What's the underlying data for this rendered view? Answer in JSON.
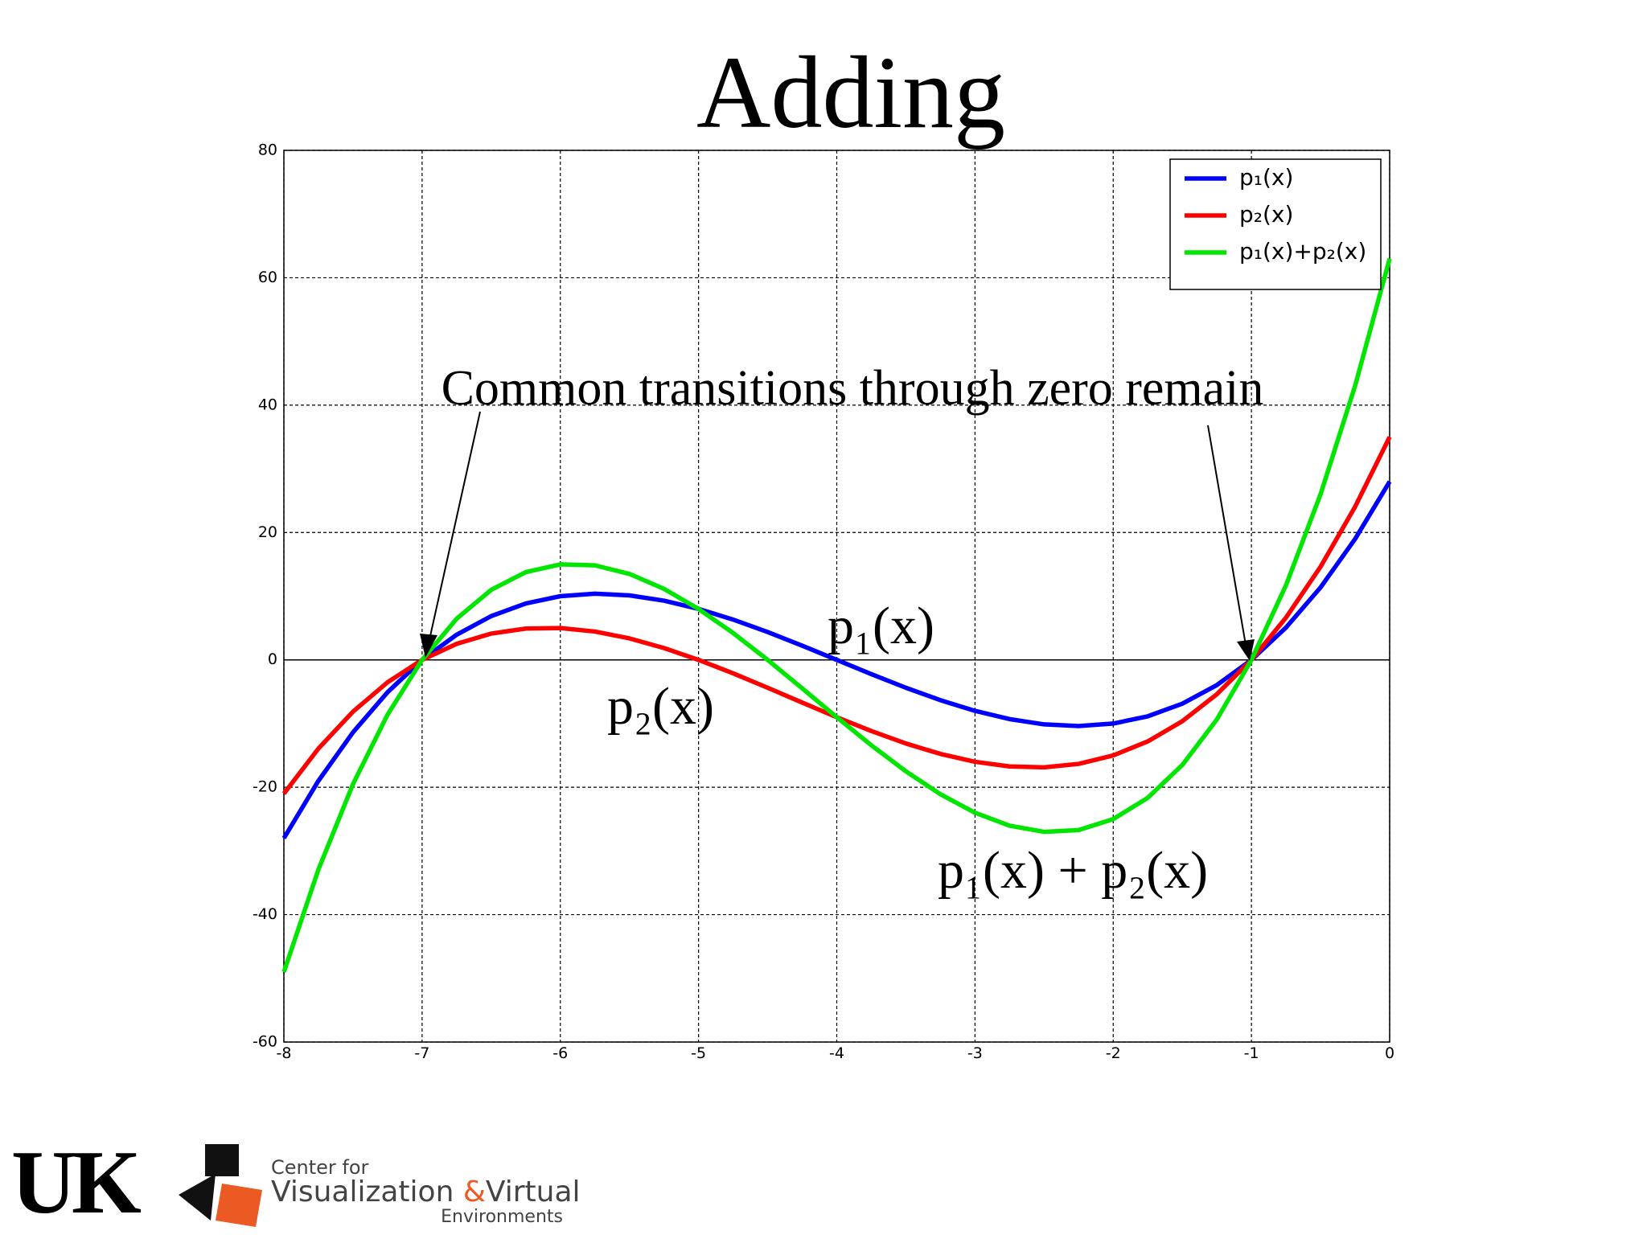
{
  "chart_data": {
    "type": "line",
    "title": "Adding",
    "x": [
      -8,
      -7.75,
      -7.5,
      -7.25,
      -7,
      -6.75,
      -6.5,
      -6.25,
      -6,
      -5.75,
      -5.5,
      -5.25,
      -5,
      -4.75,
      -4.5,
      -4.25,
      -4,
      -3.75,
      -3.5,
      -3.25,
      -3,
      -2.75,
      -2.5,
      -2.25,
      -2,
      -1.75,
      -1.5,
      -1.25,
      -1,
      -0.75,
      -0.5,
      -0.25,
      0
    ],
    "series": [
      {
        "name": "p₁(x)",
        "color": "#0000ff",
        "values": [
          -28,
          -18.984375,
          -11.375,
          -5.078125,
          0,
          3.953125,
          6.875,
          8.859375,
          10,
          10.390625,
          10.125,
          9.296875,
          8,
          6.328125,
          4.375,
          2.234375,
          0,
          -2.234375,
          -4.375,
          -6.328125,
          -8,
          -9.296875,
          -10.125,
          -10.390625,
          -10,
          -8.859375,
          -6.875,
          -3.953125,
          0,
          5.078125,
          11.375,
          18.984375,
          28
        ]
      },
      {
        "name": "p₂(x)",
        "color": "#ff0000",
        "values": [
          -21,
          -13.921875,
          -8.125,
          -3.515625,
          0,
          2.515625,
          4.125,
          4.921875,
          5,
          4.453125,
          3.375,
          1.859375,
          0,
          -2.109375,
          -4.375,
          -6.703125,
          -9,
          -11.171875,
          -13.125,
          -14.765625,
          -16,
          -16.734375,
          -16.875,
          -16.328125,
          -15,
          -12.796875,
          -9.625,
          -5.390625,
          0,
          6.640625,
          14.625,
          24.046875,
          35
        ]
      },
      {
        "name": "p₁(x)+p₂(x)",
        "color": "#00e600",
        "values": [
          -49,
          -32.90625,
          -19.5,
          -8.59375,
          0,
          6.46875,
          11,
          13.78125,
          15,
          14.84375,
          13.5,
          11.15625,
          8,
          4.21875,
          0,
          -4.46875,
          -9,
          -13.40625,
          -17.5,
          -21.09375,
          -24,
          -26.03125,
          -27,
          -26.71875,
          -25,
          -21.65625,
          -16.5,
          -9.34375,
          0,
          11.71875,
          26,
          43.03125,
          63
        ]
      }
    ],
    "xlim": [
      -8,
      0
    ],
    "xticks": [
      -8,
      -7,
      -6,
      -5,
      -4,
      -3,
      -2,
      -1,
      0
    ],
    "ylim": [
      -60,
      80
    ],
    "yticks": [
      -60,
      -40,
      -20,
      0,
      20,
      40,
      60,
      80
    ],
    "grid": true,
    "legend": "upper right",
    "annotations": [
      "Common transitions through zero remain",
      "p₁(x)",
      "p₂(x)",
      "p₁(x) + p₂(x)"
    ]
  },
  "logo": {
    "mark": "UK",
    "line1": "Center for",
    "line2a": "Visualization",
    "amp": "&",
    "line2b": "Virtual",
    "line3": "Environments"
  }
}
